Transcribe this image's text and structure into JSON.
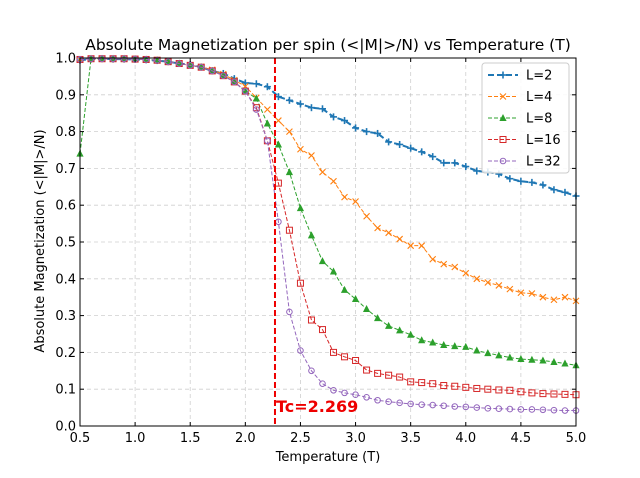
{
  "chart_data": {
    "type": "line",
    "title": "Absolute Magnetization per spin (<|M|>/N) vs Temperature (T)",
    "xlabel": "Temperature (T)",
    "ylabel": "Absolute Magnetization (<|M|>/N)",
    "xlim": [
      0.5,
      5.0
    ],
    "ylim": [
      0.0,
      1.0
    ],
    "xticks": [
      0.5,
      1.0,
      1.5,
      2.0,
      2.5,
      3.0,
      3.5,
      4.0,
      4.5,
      5.0
    ],
    "xtick_labels": [
      "0.5",
      "1.0",
      "1.5",
      "2.0",
      "2.5",
      "3.0",
      "3.5",
      "4.0",
      "4.5",
      "5.0"
    ],
    "yticks": [
      0.0,
      0.1,
      0.2,
      0.3,
      0.4,
      0.5,
      0.6,
      0.7,
      0.8,
      0.9,
      1.0
    ],
    "ytick_labels": [
      "0.0",
      "0.1",
      "0.2",
      "0.3",
      "0.4",
      "0.5",
      "0.6",
      "0.7",
      "0.8",
      "0.9",
      "1.0"
    ],
    "grid": true,
    "legend_position": "top-right",
    "x": [
      0.5,
      0.6,
      0.7,
      0.8,
      0.9,
      1.0,
      1.1,
      1.2,
      1.3,
      1.4,
      1.5,
      1.6,
      1.7,
      1.8,
      1.9,
      2.0,
      2.1,
      2.2,
      2.3,
      2.4,
      2.5,
      2.6,
      2.7,
      2.8,
      2.9,
      3.0,
      3.1,
      3.2,
      3.3,
      3.4,
      3.5,
      3.6,
      3.7,
      3.8,
      3.9,
      4.0,
      4.1,
      4.2,
      4.3,
      4.4,
      4.5,
      4.6,
      4.7,
      4.8,
      4.9,
      5.0
    ],
    "series": [
      {
        "name": "L=2",
        "color": "#1f77b4",
        "marker": "plus",
        "dash": "6 3",
        "width": 2,
        "values": [
          0.994,
          0.997,
          0.998,
          0.997,
          0.997,
          0.996,
          0.995,
          0.993,
          0.99,
          0.985,
          0.982,
          0.975,
          0.965,
          0.958,
          0.944,
          0.932,
          0.93,
          0.922,
          0.895,
          0.885,
          0.875,
          0.865,
          0.862,
          0.84,
          0.83,
          0.81,
          0.8,
          0.795,
          0.772,
          0.765,
          0.755,
          0.745,
          0.732,
          0.715,
          0.715,
          0.705,
          0.693,
          0.69,
          0.685,
          0.672,
          0.665,
          0.662,
          0.655,
          0.642,
          0.635,
          0.625
        ]
      },
      {
        "name": "L=4",
        "color": "#ff7f0e",
        "marker": "x",
        "dash": "4 2",
        "width": 1,
        "values": [
          0.996,
          0.998,
          0.998,
          0.998,
          0.998,
          0.997,
          0.996,
          0.994,
          0.99,
          0.985,
          0.98,
          0.976,
          0.968,
          0.956,
          0.94,
          0.923,
          0.892,
          0.86,
          0.83,
          0.8,
          0.752,
          0.735,
          0.69,
          0.665,
          0.622,
          0.61,
          0.57,
          0.538,
          0.525,
          0.508,
          0.49,
          0.49,
          0.453,
          0.44,
          0.432,
          0.415,
          0.4,
          0.39,
          0.382,
          0.372,
          0.362,
          0.36,
          0.35,
          0.343,
          0.35,
          0.34
        ]
      },
      {
        "name": "L=8",
        "color": "#2ca02c",
        "marker": "triangle",
        "dash": "4 2",
        "width": 1,
        "values": [
          0.74,
          0.998,
          0.998,
          0.998,
          0.998,
          0.997,
          0.996,
          0.994,
          0.99,
          0.985,
          0.98,
          0.975,
          0.965,
          0.952,
          0.935,
          0.91,
          0.89,
          0.822,
          0.765,
          0.69,
          0.592,
          0.518,
          0.448,
          0.42,
          0.37,
          0.345,
          0.318,
          0.293,
          0.272,
          0.26,
          0.248,
          0.233,
          0.227,
          0.22,
          0.217,
          0.215,
          0.205,
          0.198,
          0.192,
          0.186,
          0.182,
          0.18,
          0.178,
          0.174,
          0.17,
          0.165
        ]
      },
      {
        "name": "L=16",
        "color": "#d62728",
        "marker": "square",
        "dash": "4 2",
        "width": 1,
        "values": [
          0.996,
          0.998,
          0.998,
          0.998,
          0.998,
          0.997,
          0.996,
          0.994,
          0.99,
          0.985,
          0.98,
          0.975,
          0.965,
          0.952,
          0.935,
          0.91,
          0.865,
          0.775,
          0.66,
          0.532,
          0.388,
          0.288,
          0.262,
          0.2,
          0.188,
          0.178,
          0.152,
          0.143,
          0.138,
          0.133,
          0.12,
          0.118,
          0.115,
          0.11,
          0.108,
          0.105,
          0.102,
          0.1,
          0.098,
          0.097,
          0.093,
          0.09,
          0.088,
          0.087,
          0.086,
          0.085
        ]
      },
      {
        "name": "L=32",
        "color": "#9467bd",
        "marker": "circle",
        "dash": "4 2",
        "width": 1,
        "values": [
          0.996,
          0.998,
          0.998,
          0.998,
          0.998,
          0.997,
          0.996,
          0.994,
          0.99,
          0.985,
          0.98,
          0.975,
          0.965,
          0.952,
          0.935,
          0.91,
          0.86,
          0.775,
          0.555,
          0.31,
          0.205,
          0.15,
          0.115,
          0.097,
          0.09,
          0.085,
          0.078,
          0.07,
          0.066,
          0.063,
          0.06,
          0.058,
          0.057,
          0.055,
          0.053,
          0.052,
          0.05,
          0.048,
          0.047,
          0.046,
          0.045,
          0.045,
          0.044,
          0.043,
          0.042,
          0.042
        ]
      }
    ],
    "critical_line": {
      "x": 2.269,
      "label": "Tc=2.269",
      "color": "#ee0000"
    }
  }
}
